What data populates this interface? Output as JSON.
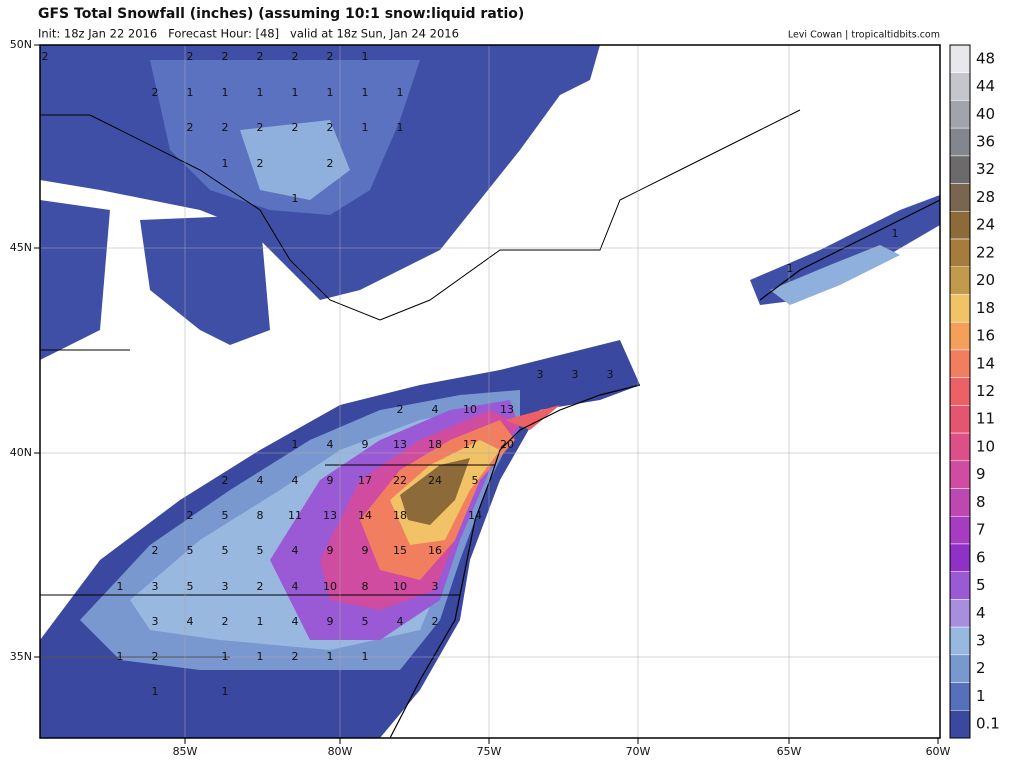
{
  "header": {
    "title": "GFS Total Snowfall (inches) (assuming 10:1 snow:liquid ratio)",
    "subtitle": "Init: 18z Jan 22 2016   Forecast Hour: [48]   valid at 18z Sun, Jan 24 2016",
    "credit": "Levi Cowan | tropicaltidbits.com"
  },
  "axes": {
    "lat_labels": [
      "50N",
      "45N",
      "40N",
      "35N"
    ],
    "lon_labels": [
      "85W",
      "80W",
      "75W",
      "70W",
      "65W",
      "60W"
    ]
  },
  "legend": {
    "levels": [
      "48",
      "44",
      "40",
      "36",
      "32",
      "28",
      "24",
      "22",
      "20",
      "18",
      "16",
      "14",
      "12",
      "11",
      "10",
      "9",
      "8",
      "7",
      "6",
      "5",
      "4",
      "3",
      "2",
      "1",
      "0.1"
    ],
    "colors": [
      "#e8e8ec",
      "#c4c6cc",
      "#a2a4ac",
      "#84868e",
      "#6c6a6a",
      "#7a6650",
      "#8c6a3a",
      "#a67c3e",
      "#c29a4c",
      "#f2c266",
      "#f5a05a",
      "#f27e60",
      "#ee6068",
      "#e4566e",
      "#dc5088",
      "#cf4ca0",
      "#bd48b2",
      "#a63cc0",
      "#8f30c6",
      "#9a5ad6",
      "#a88ede",
      "#98b8e0",
      "#7a98d0",
      "#5670bc",
      "#3b48a0"
    ]
  },
  "map": {
    "labels": [
      "2",
      "2",
      "2",
      "2",
      "2",
      "2",
      "1",
      "2",
      "1",
      "1",
      "1",
      "1",
      "1",
      "1",
      "1",
      "2",
      "2",
      "2",
      "2",
      "2",
      "1",
      "1",
      "1",
      "2",
      "2",
      "1",
      "1",
      "1",
      "3",
      "3",
      "3",
      "2",
      "4",
      "10",
      "13",
      "1",
      "4",
      "9",
      "13",
      "18",
      "17",
      "20",
      "2",
      "4",
      "4",
      "9",
      "17",
      "22",
      "24",
      "5",
      "2",
      "5",
      "8",
      "11",
      "13",
      "14",
      "18",
      "14",
      "2",
      "5",
      "5",
      "5",
      "4",
      "9",
      "9",
      "15",
      "16",
      "1",
      "3",
      "5",
      "3",
      "2",
      "4",
      "10",
      "8",
      "10",
      "3",
      "3",
      "4",
      "2",
      "1",
      "4",
      "9",
      "5",
      "4",
      "2",
      "1",
      "2",
      "1",
      "1",
      "2",
      "1",
      "1",
      "1",
      "1"
    ]
  }
}
